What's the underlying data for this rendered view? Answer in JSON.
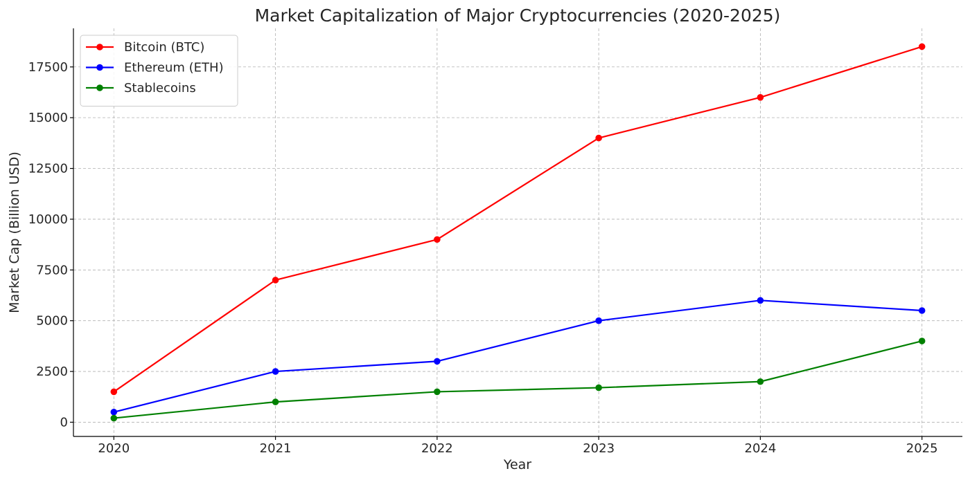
{
  "chart_data": {
    "type": "line",
    "title": "Market Capitalization of Major Cryptocurrencies (2020-2025)",
    "xlabel": "Year",
    "ylabel": "Market Cap (Billion USD)",
    "x": [
      2020,
      2021,
      2022,
      2023,
      2024,
      2025
    ],
    "x_tick_labels": [
      "2020",
      "2021",
      "2022",
      "2023",
      "2024",
      "2025"
    ],
    "y_ticks": [
      0,
      2500,
      5000,
      7500,
      10000,
      12500,
      15000,
      17500
    ],
    "y_tick_labels": [
      "0",
      "2500",
      "5000",
      "7500",
      "10000",
      "12500",
      "15000",
      "17500"
    ],
    "xlim": [
      2019.75,
      2025.25
    ],
    "ylim": [
      -700,
      19400
    ],
    "grid": true,
    "legend_position": "top-left",
    "series": [
      {
        "name": "Bitcoin (BTC)",
        "color": "#ff0000",
        "values": [
          1500,
          7000,
          9000,
          14000,
          16000,
          18500
        ]
      },
      {
        "name": "Ethereum (ETH)",
        "color": "#0000ff",
        "values": [
          500,
          2500,
          3000,
          5000,
          6000,
          5500
        ]
      },
      {
        "name": "Stablecoins",
        "color": "#008000",
        "values": [
          200,
          1000,
          1500,
          1700,
          2000,
          4000
        ]
      }
    ]
  }
}
